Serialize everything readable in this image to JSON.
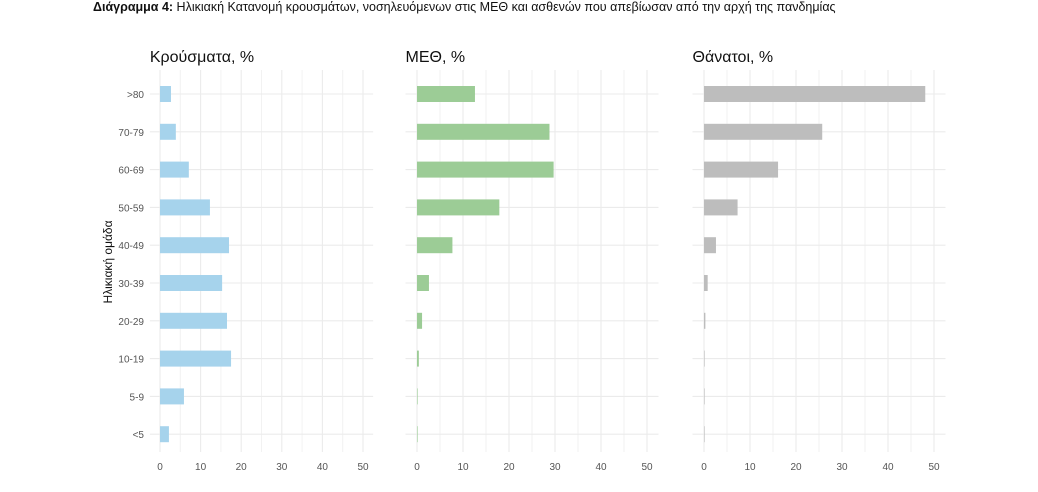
{
  "caption": {
    "bold": "Διάγραμμα 4:",
    "text": " Ηλικιακή Κατανομή κρουσμάτων, νοσηλευόμενων στις ΜΕΘ και ασθενών που απεβίωσαν από την αρχή της πανδημίας"
  },
  "chart_data": {
    "type": "bar",
    "orientation": "horizontal",
    "ylabel": "Ηλικιακή ομάδα",
    "categories": [
      ">80",
      "70-79",
      "60-69",
      "50-59",
      "40-49",
      "30-39",
      "20-29",
      "10-19",
      "5-9",
      "<5"
    ],
    "xlim": [
      0,
      50
    ],
    "xticks": [
      0,
      10,
      20,
      30,
      40,
      50
    ],
    "grid": true,
    "panels": [
      {
        "title": "Κρούσματα, %",
        "color": "#a6d3ec",
        "values": [
          2.7,
          3.9,
          7.1,
          12.3,
          17.0,
          15.3,
          16.5,
          17.5,
          5.9,
          2.2
        ]
      },
      {
        "title": "ΜΕΘ, %",
        "color": "#9ccc96",
        "values": [
          12.6,
          28.8,
          29.7,
          17.9,
          7.7,
          2.6,
          1.1,
          0.4,
          0.1,
          0.1
        ]
      },
      {
        "title": "Θάνατοι, %",
        "color": "#bdbdbd",
        "values": [
          48.1,
          25.7,
          16.1,
          7.3,
          2.6,
          0.8,
          0.3,
          0.1,
          0.05,
          0.1
        ]
      }
    ]
  }
}
